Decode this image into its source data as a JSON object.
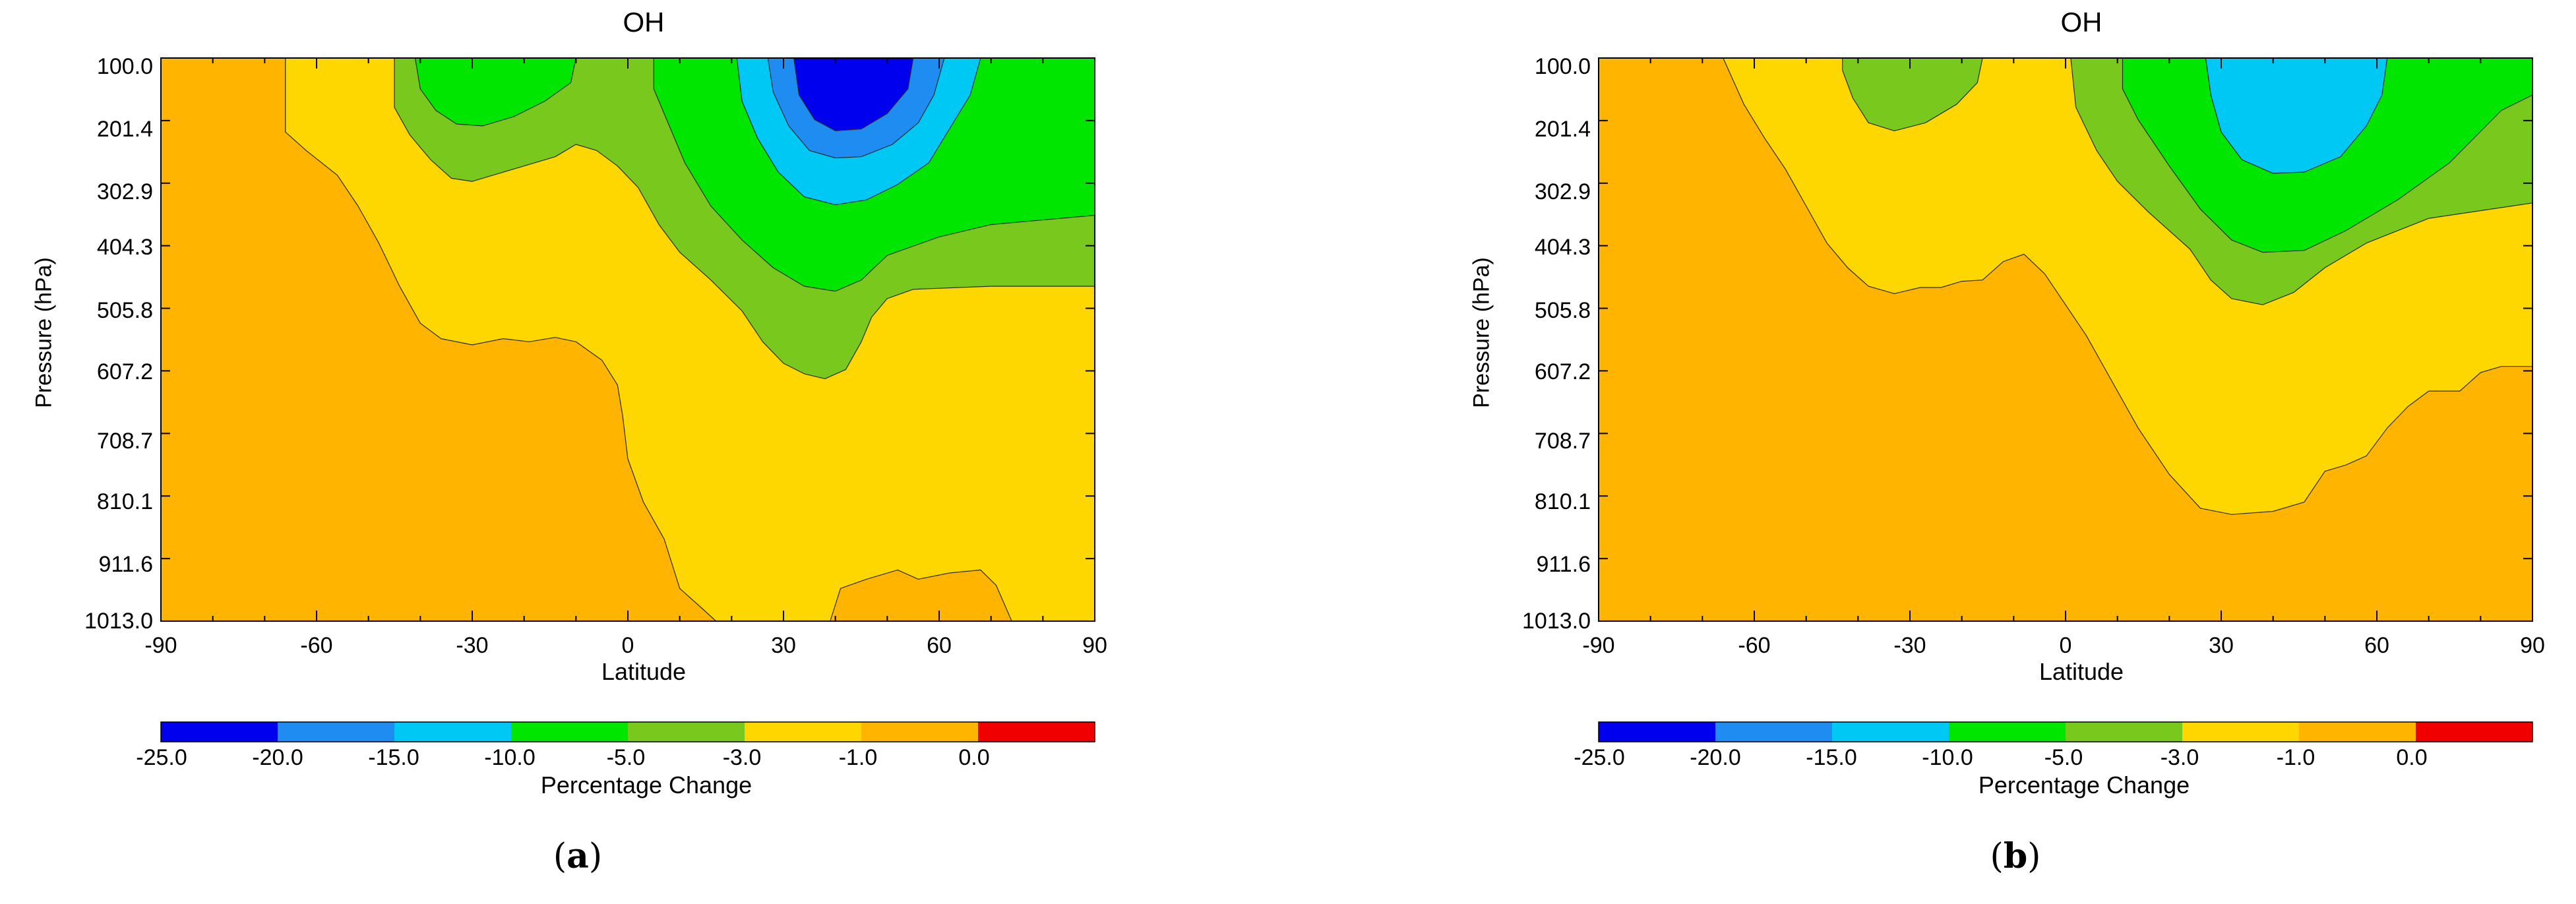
{
  "colorbar": {
    "colors": [
      "#0000ee",
      "#1e8cf0",
      "#00c8f5",
      "#00e600",
      "#78c81e",
      "#ffd700",
      "#ffb400",
      "#f00000"
    ],
    "ticks": [
      "-25.0",
      "-20.0",
      "-15.0",
      "-10.0",
      "-5.0",
      "-3.0",
      "-1.0",
      "0.0"
    ],
    "label": "Percentage Change"
  },
  "chart_data": [
    {
      "type": "heatmap",
      "panel_label": "a",
      "title": "OH",
      "xlabel": "Latitude",
      "ylabel": "Pressure (hPa)",
      "xlim": [
        -90,
        90
      ],
      "ylim": [
        1013.0,
        100.0
      ],
      "x_ticks": [
        "-90",
        "-60",
        "-30",
        "0",
        "30",
        "60",
        "90"
      ],
      "y_ticks": [
        "100.0",
        "201.4",
        "302.9",
        "404.3",
        "505.8",
        "607.2",
        "708.7",
        "810.1",
        "911.6",
        "1013.0"
      ],
      "regions": [
        {
          "level": "-3.0 to -1.0",
          "polygon": [
            [
              -66,
              100
            ],
            [
              90,
              100
            ],
            [
              90,
              1013
            ],
            [
              17,
              1013
            ],
            [
              14,
              990
            ],
            [
              10,
              960
            ],
            [
              7,
              880
            ],
            [
              3,
              820
            ],
            [
              0,
              750
            ],
            [
              -1,
              680
            ],
            [
              -2,
              630
            ],
            [
              -5,
              590
            ],
            [
              -10,
              560
            ],
            [
              -14,
              553
            ],
            [
              -19,
              560
            ],
            [
              -24,
              555
            ],
            [
              -30,
              565
            ],
            [
              -36,
              555
            ],
            [
              -40,
              530
            ],
            [
              -44,
              470
            ],
            [
              -48,
              400
            ],
            [
              -52,
              340
            ],
            [
              -56,
              290
            ],
            [
              -62,
              250
            ],
            [
              -66,
              220
            ],
            [
              -66,
              100
            ]
          ]
        },
        {
          "level": "-1.0 to 0.0",
          "polygon": [
            [
              39,
              1013
            ],
            [
              41,
              960
            ],
            [
              46,
              945
            ],
            [
              52,
              930
            ],
            [
              56,
              945
            ],
            [
              62,
              935
            ],
            [
              68,
              930
            ],
            [
              71,
              955
            ],
            [
              74,
              1013
            ]
          ]
        },
        {
          "level": "-5.0 to -3.0",
          "polygon": [
            [
              -45,
              100
            ],
            [
              90,
              100
            ],
            [
              90,
              470
            ],
            [
              70,
              470
            ],
            [
              55,
              475
            ],
            [
              50,
              490
            ],
            [
              47,
              520
            ],
            [
              45,
              560
            ],
            [
              42,
              605
            ],
            [
              38,
              620
            ],
            [
              34,
              612
            ],
            [
              30,
              595
            ],
            [
              26,
              560
            ],
            [
              22,
              510
            ],
            [
              16,
              460
            ],
            [
              10,
              415
            ],
            [
              6,
              370
            ],
            [
              2,
              310
            ],
            [
              -2,
              275
            ],
            [
              -6,
              250
            ],
            [
              -10,
              240
            ],
            [
              -14,
              260
            ],
            [
              -20,
              275
            ],
            [
              -26,
              290
            ],
            [
              -30,
              300
            ],
            [
              -34,
              295
            ],
            [
              -38,
              265
            ],
            [
              -42,
              225
            ],
            [
              -45,
              180
            ],
            [
              -45,
              100
            ]
          ]
        },
        {
          "level": "-10.0 to -5.0",
          "polygon": [
            [
              -41,
              100
            ],
            [
              -10,
              100
            ],
            [
              -11,
              140
            ],
            [
              -16,
              170
            ],
            [
              -22,
              195
            ],
            [
              -28,
              210
            ],
            [
              -33,
              207
            ],
            [
              -37,
              185
            ],
            [
              -40,
              150
            ],
            [
              -41,
              100
            ]
          ]
        },
        {
          "level": "-10.0 to -5.0",
          "polygon": [
            [
              5,
              100
            ],
            [
              90,
              100
            ],
            [
              90,
              355
            ],
            [
              70,
              370
            ],
            [
              60,
              390
            ],
            [
              50,
              420
            ],
            [
              45,
              460
            ],
            [
              40,
              478
            ],
            [
              34,
              470
            ],
            [
              28,
              440
            ],
            [
              22,
              395
            ],
            [
              16,
              340
            ],
            [
              11,
              270
            ],
            [
              8,
              210
            ],
            [
              5,
              150
            ],
            [
              5,
              100
            ]
          ]
        },
        {
          "level": "-15.0 to -10.0",
          "polygon": [
            [
              21,
              100
            ],
            [
              68,
              100
            ],
            [
              66,
              160
            ],
            [
              62,
              215
            ],
            [
              58,
              270
            ],
            [
              52,
              305
            ],
            [
              46,
              330
            ],
            [
              40,
              338
            ],
            [
              34,
              325
            ],
            [
              29,
              285
            ],
            [
              25,
              230
            ],
            [
              22,
              170
            ],
            [
              21,
              100
            ]
          ]
        },
        {
          "level": "-20.0 to -15.0",
          "polygon": [
            [
              27,
              100
            ],
            [
              61,
              100
            ],
            [
              59,
              160
            ],
            [
              56,
              205
            ],
            [
              51,
              240
            ],
            [
              45,
              260
            ],
            [
              40,
              262
            ],
            [
              35,
              250
            ],
            [
              31,
              210
            ],
            [
              28,
              155
            ],
            [
              27,
              100
            ]
          ]
        },
        {
          "level": "-25.0 to -20.0",
          "polygon": [
            [
              32,
              100
            ],
            [
              55,
              100
            ],
            [
              54,
              150
            ],
            [
              50,
              190
            ],
            [
              45,
              215
            ],
            [
              40,
              218
            ],
            [
              36,
              200
            ],
            [
              33,
              160
            ],
            [
              32,
              100
            ]
          ]
        }
      ]
    },
    {
      "type": "heatmap",
      "panel_label": "b",
      "title": "OH",
      "xlabel": "Latitude",
      "ylabel": "Pressure (hPa)",
      "xlim": [
        -90,
        90
      ],
      "ylim": [
        1013.0,
        100.0
      ],
      "x_ticks": [
        "-90",
        "-60",
        "-30",
        "0",
        "30",
        "60",
        "90"
      ],
      "y_ticks": [
        "100.0",
        "201.4",
        "302.9",
        "404.3",
        "505.8",
        "607.2",
        "708.7",
        "810.1",
        "911.6",
        "1013.0"
      ],
      "regions": [
        {
          "level": "-3.0 to -1.0",
          "polygon": [
            [
              -66,
              100
            ],
            [
              90,
              100
            ],
            [
              90,
              600
            ],
            [
              84,
              600
            ],
            [
              80,
              610
            ],
            [
              76,
              640
            ],
            [
              70,
              640
            ],
            [
              66,
              665
            ],
            [
              62,
              700
            ],
            [
              58,
              745
            ],
            [
              54,
              760
            ],
            [
              50,
              770
            ],
            [
              46,
              820
            ],
            [
              40,
              835
            ],
            [
              32,
              840
            ],
            [
              26,
              830
            ],
            [
              20,
              775
            ],
            [
              14,
              700
            ],
            [
              8,
              610
            ],
            [
              4,
              550
            ],
            [
              0,
              500
            ],
            [
              -4,
              450
            ],
            [
              -8,
              418
            ],
            [
              -12,
              430
            ],
            [
              -16,
              460
            ],
            [
              -20,
              462
            ],
            [
              -24,
              472
            ],
            [
              -28,
              472
            ],
            [
              -33,
              482
            ],
            [
              -38,
              470
            ],
            [
              -42,
              440
            ],
            [
              -46,
              400
            ],
            [
              -50,
              340
            ],
            [
              -54,
              280
            ],
            [
              -58,
              230
            ],
            [
              -62,
              175
            ],
            [
              -66,
              100
            ]
          ]
        },
        {
          "level": "-5.0 to -3.0",
          "polygon": [
            [
              -43,
              100
            ],
            [
              -16,
              100
            ],
            [
              -17,
              140
            ],
            [
              -21,
              175
            ],
            [
              -27,
              205
            ],
            [
              -33,
              218
            ],
            [
              -38,
              205
            ],
            [
              -41,
              165
            ],
            [
              -43,
              120
            ],
            [
              -43,
              100
            ]
          ]
        },
        {
          "level": "-5.0 to -3.0",
          "polygon": [
            [
              1,
              100
            ],
            [
              90,
              100
            ],
            [
              90,
              335
            ],
            [
              70,
              360
            ],
            [
              58,
              400
            ],
            [
              50,
              440
            ],
            [
              44,
              480
            ],
            [
              38,
              500
            ],
            [
              32,
              490
            ],
            [
              28,
              460
            ],
            [
              24,
              410
            ],
            [
              16,
              350
            ],
            [
              10,
              300
            ],
            [
              6,
              250
            ],
            [
              2,
              180
            ],
            [
              1,
              100
            ]
          ]
        },
        {
          "level": "-10.0 to -5.0",
          "polygon": [
            [
              11,
              100
            ],
            [
              90,
              100
            ],
            [
              90,
              160
            ],
            [
              84,
              185
            ],
            [
              74,
              270
            ],
            [
              64,
              330
            ],
            [
              54,
              380
            ],
            [
              46,
              412
            ],
            [
              38,
              415
            ],
            [
              32,
              395
            ],
            [
              26,
              345
            ],
            [
              20,
              275
            ],
            [
              14,
              200
            ],
            [
              11,
              150
            ],
            [
              11,
              100
            ]
          ]
        },
        {
          "level": "-15.0 to -10.0",
          "polygon": [
            [
              27,
              100
            ],
            [
              62,
              100
            ],
            [
              61,
              160
            ],
            [
              58,
              210
            ],
            [
              53,
              260
            ],
            [
              46,
              285
            ],
            [
              40,
              287
            ],
            [
              34,
              265
            ],
            [
              30,
              220
            ],
            [
              28,
              160
            ],
            [
              27,
              100
            ]
          ]
        }
      ]
    }
  ]
}
